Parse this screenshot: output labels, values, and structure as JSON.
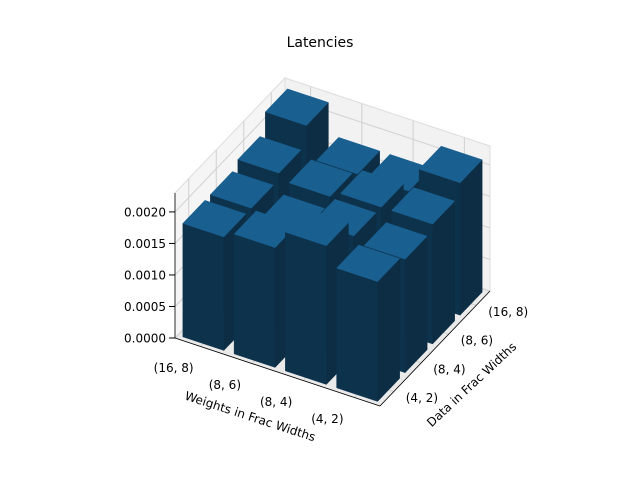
{
  "chart_data": {
    "type": "bar3d",
    "title": "Latencies",
    "x_label": "Weights in Frac Widths",
    "y_label": "Data in Frac Widths",
    "x_categories": [
      "(16, 8)",
      "(8, 6)",
      "(8, 4)",
      "(4, 2)"
    ],
    "y_categories": [
      "(4, 2)",
      "(8, 4)",
      "(8, 6)",
      "(16, 8)"
    ],
    "values": [
      [
        0.0018,
        0.0018,
        0.0019,
        0.0022
      ],
      [
        0.0019,
        0.0017,
        0.0018,
        0.0017
      ],
      [
        0.0022,
        0.0019,
        0.0019,
        0.0017
      ],
      [
        0.0019,
        0.0018,
        0.0019,
        0.0021
      ]
    ],
    "color": "#1f77b4",
    "zlim": [
      0,
      0.0023
    ],
    "zticks": [
      {
        "value": 0,
        "label": "0.0000"
      },
      {
        "value": 0.0005,
        "label": "0.0005"
      },
      {
        "value": 0.001,
        "label": "0.0010"
      },
      {
        "value": 0.0015,
        "label": "0.0015"
      },
      {
        "value": 0.002,
        "label": "0.0020"
      }
    ],
    "grid": true
  }
}
